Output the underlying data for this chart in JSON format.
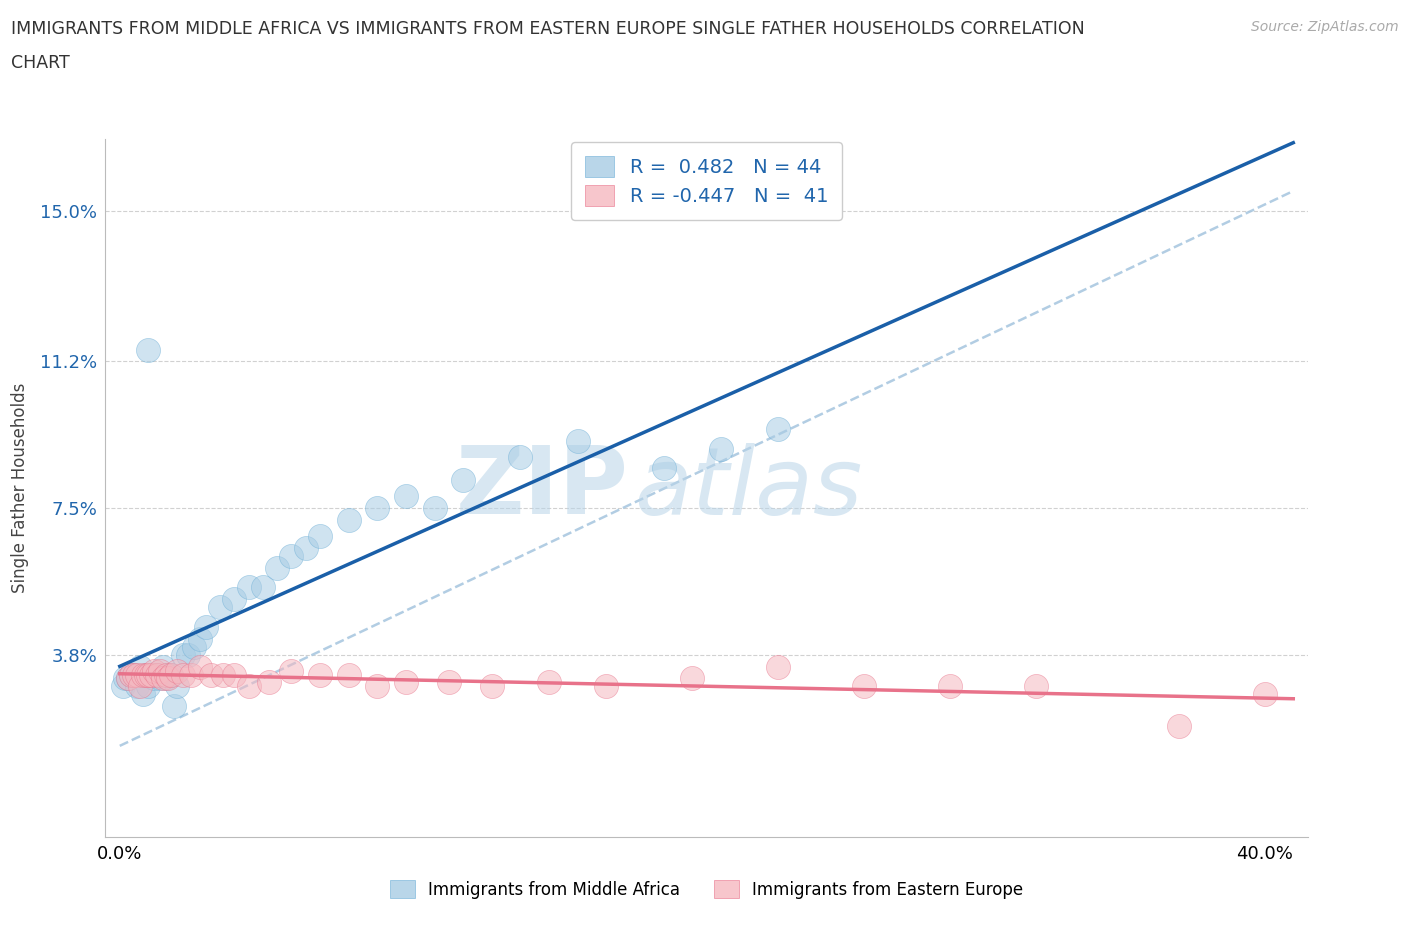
{
  "title_line1": "IMMIGRANTS FROM MIDDLE AFRICA VS IMMIGRANTS FROM EASTERN EUROPE SINGLE FATHER HOUSEHOLDS CORRELATION",
  "title_line2": "CHART",
  "source": "Source: ZipAtlas.com",
  "ylabel": "Single Father Households",
  "ytick_vals": [
    0.038,
    0.075,
    0.112,
    0.15
  ],
  "ytick_labels": [
    "3.8%",
    "7.5%",
    "11.2%",
    "15.0%"
  ],
  "xtick_vals": [
    0.0,
    0.1,
    0.2,
    0.3,
    0.4
  ],
  "xtick_labels": [
    "0.0%",
    "",
    "",
    "",
    "40.0%"
  ],
  "xlim": [
    -0.005,
    0.415
  ],
  "ylim": [
    -0.008,
    0.168
  ],
  "series1_label": "Immigrants from Middle Africa",
  "series2_label": "Immigrants from Eastern Europe",
  "series1_color": "#a8cce4",
  "series2_color": "#f5b8c0",
  "trend1_color": "#1a5fa8",
  "trend2_color": "#e8728a",
  "dashed_color": "#aac8e0",
  "watermark_zip": "ZIP",
  "watermark_atlas": "atlas",
  "background_color": "#ffffff",
  "grid_color": "#cccccc",
  "legend_text_color": "#2166ac",
  "r1": "0.482",
  "n1": "44",
  "r2": "-0.447",
  "n2": "41",
  "blue_x": [
    0.001,
    0.002,
    0.003,
    0.004,
    0.005,
    0.006,
    0.007,
    0.008,
    0.009,
    0.01,
    0.011,
    0.012,
    0.013,
    0.014,
    0.015,
    0.016,
    0.017,
    0.018,
    0.019,
    0.02,
    0.022,
    0.024,
    0.026,
    0.028,
    0.03,
    0.035,
    0.04,
    0.045,
    0.05,
    0.055,
    0.06,
    0.065,
    0.07,
    0.08,
    0.09,
    0.1,
    0.11,
    0.12,
    0.14,
    0.16,
    0.19,
    0.21,
    0.23,
    0.01
  ],
  "blue_y": [
    0.03,
    0.032,
    0.032,
    0.033,
    0.033,
    0.03,
    0.035,
    0.028,
    0.033,
    0.03,
    0.033,
    0.032,
    0.033,
    0.032,
    0.035,
    0.032,
    0.033,
    0.033,
    0.025,
    0.03,
    0.038,
    0.038,
    0.04,
    0.042,
    0.045,
    0.05,
    0.052,
    0.055,
    0.055,
    0.06,
    0.063,
    0.065,
    0.068,
    0.072,
    0.075,
    0.078,
    0.075,
    0.082,
    0.088,
    0.092,
    0.085,
    0.09,
    0.095,
    0.115
  ],
  "pink_x": [
    0.003,
    0.004,
    0.005,
    0.006,
    0.007,
    0.008,
    0.009,
    0.01,
    0.011,
    0.012,
    0.013,
    0.014,
    0.015,
    0.016,
    0.017,
    0.018,
    0.02,
    0.022,
    0.025,
    0.028,
    0.032,
    0.036,
    0.04,
    0.045,
    0.052,
    0.06,
    0.07,
    0.08,
    0.09,
    0.1,
    0.115,
    0.13,
    0.15,
    0.17,
    0.2,
    0.23,
    0.26,
    0.29,
    0.32,
    0.37,
    0.4
  ],
  "pink_y": [
    0.032,
    0.033,
    0.033,
    0.033,
    0.03,
    0.033,
    0.033,
    0.033,
    0.033,
    0.034,
    0.033,
    0.034,
    0.032,
    0.033,
    0.032,
    0.033,
    0.034,
    0.033,
    0.033,
    0.035,
    0.033,
    0.033,
    0.033,
    0.03,
    0.031,
    0.034,
    0.033,
    0.033,
    0.03,
    0.031,
    0.031,
    0.03,
    0.031,
    0.03,
    0.032,
    0.035,
    0.03,
    0.03,
    0.03,
    0.02,
    0.028
  ]
}
